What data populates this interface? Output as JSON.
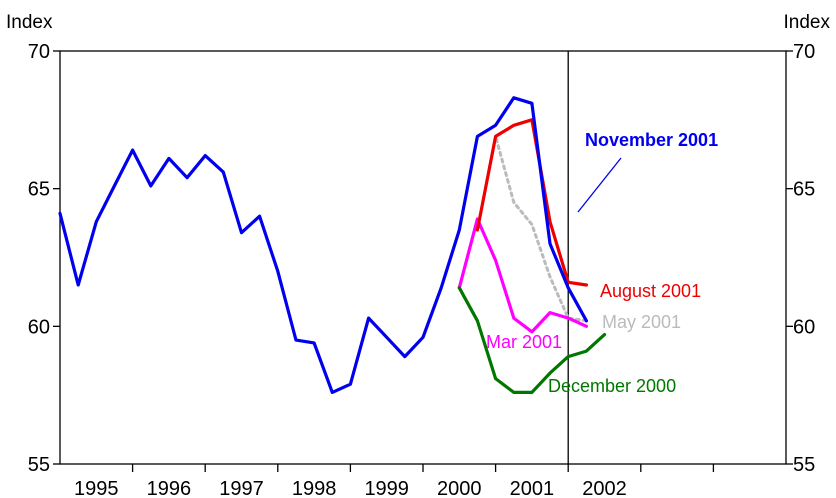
{
  "chart_data": {
    "type": "line",
    "title": "",
    "ylabel_left": "Index",
    "ylabel_right": "Index",
    "ylim": [
      55,
      70
    ],
    "yticks": [
      "55",
      "60",
      "65",
      "70"
    ],
    "xlim": [
      1994.5,
      2004.5
    ],
    "xticks": [
      "1995",
      "1996",
      "1997",
      "1998",
      "1999",
      "2000",
      "2001",
      "2002"
    ],
    "grid": false,
    "legend": "none",
    "vertical_marker_x": 2001.5,
    "series": [
      {
        "name": "November 2001",
        "color": "#0000ee",
        "bold_label": true,
        "x": [
          1994.5,
          1994.75,
          1995.0,
          1995.25,
          1995.5,
          1995.75,
          1996.0,
          1996.25,
          1996.5,
          1996.75,
          1997.0,
          1997.25,
          1997.5,
          1997.75,
          1998.0,
          1998.25,
          1998.5,
          1998.75,
          1999.0,
          1999.25,
          1999.5,
          1999.75,
          2000.0,
          2000.25,
          2000.5,
          2000.75,
          2001.0,
          2001.25,
          2001.5,
          2001.75,
          2002.0,
          2002.25
        ],
        "y": [
          64.1,
          61.5,
          63.8,
          65.1,
          66.4,
          65.1,
          66.1,
          65.4,
          66.2,
          65.6,
          63.4,
          64.0,
          62.0,
          59.5,
          59.4,
          57.6,
          57.9,
          60.3,
          59.6,
          58.9,
          59.6,
          61.4,
          63.5,
          66.9,
          67.3,
          68.3,
          68.1,
          63.0,
          61.4,
          60.2,
          null,
          null
        ]
      },
      {
        "name": "August 2001",
        "color": "#ee0000",
        "x": [
          2000.25,
          2000.5,
          2000.75,
          2001.0,
          2001.25,
          2001.5,
          2001.75,
          2002.0
        ],
        "y": [
          63.5,
          66.9,
          67.3,
          67.5,
          63.8,
          61.6,
          61.5,
          null
        ]
      },
      {
        "name": "May 2001",
        "color": "#bbbbbb",
        "dashed": true,
        "x": [
          2000.25,
          2000.5,
          2000.75,
          2001.0,
          2001.25,
          2001.5,
          2001.75
        ],
        "y": [
          63.5,
          66.9,
          64.5,
          63.7,
          61.8,
          60.3,
          60.2
        ]
      },
      {
        "name": "Mar 2001",
        "color": "#ff00ff",
        "x": [
          2000.0,
          2000.25,
          2000.5,
          2000.75,
          2001.0,
          2001.25,
          2001.5,
          2001.75
        ],
        "y": [
          61.4,
          63.9,
          62.4,
          60.3,
          59.8,
          60.5,
          60.3,
          60.0
        ]
      },
      {
        "name": "December 2000",
        "color": "#007700",
        "x": [
          2000.0,
          2000.25,
          2000.5,
          2000.75,
          2001.0,
          2001.25,
          2001.5,
          2001.75,
          2002.0
        ],
        "y": [
          61.4,
          60.2,
          58.1,
          57.6,
          57.6,
          58.3,
          58.9,
          59.1,
          59.7
        ]
      }
    ]
  }
}
